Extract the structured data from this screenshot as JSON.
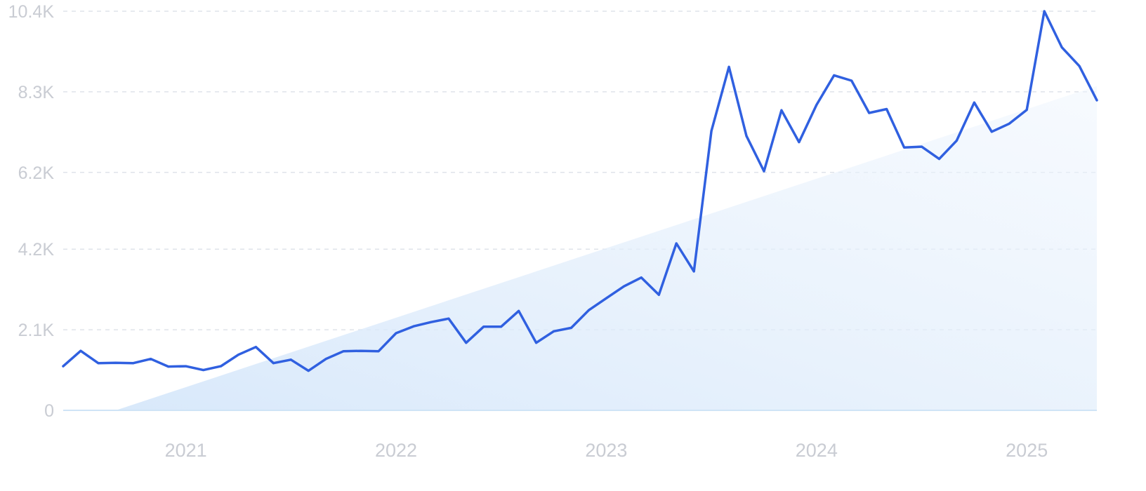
{
  "chart_data": {
    "type": "line",
    "title": "",
    "xlabel": "",
    "ylabel": "",
    "y_ticks": [
      "0",
      "2.1K",
      "4.2K",
      "6.2K",
      "8.3K",
      "10.4K"
    ],
    "y_tick_values": [
      0,
      2100,
      4200,
      6200,
      8300,
      10400
    ],
    "ylim": [
      0,
      10400
    ],
    "x_ticks": [
      "2021",
      "2022",
      "2023",
      "2024",
      "2025"
    ],
    "x_tick_values": [
      "2021-01",
      "2022-01",
      "2023-01",
      "2024-01",
      "2025-01"
    ],
    "xlim": [
      "2020-06",
      "2025-05"
    ],
    "grid": true,
    "legend": false,
    "colors": {
      "line": "#3060e0",
      "trend_area": "#d8e8fa",
      "grid": "#dfe3ea",
      "tick_text": "#c9ccd3"
    },
    "trend": {
      "start": {
        "x": "2020-09",
        "y": 0
      },
      "end": {
        "x": "2025-05",
        "y": 8450
      }
    },
    "series": [
      {
        "x": [
          "2020-06",
          "2020-07",
          "2020-08",
          "2020-09",
          "2020-10",
          "2020-11",
          "2020-12",
          "2021-01",
          "2021-02",
          "2021-03",
          "2021-04",
          "2021-05",
          "2021-06",
          "2021-07",
          "2021-08",
          "2021-09",
          "2021-10",
          "2021-11",
          "2021-12",
          "2022-01",
          "2022-02",
          "2022-03",
          "2022-04",
          "2022-05",
          "2022-06",
          "2022-07",
          "2022-08",
          "2022-09",
          "2022-10",
          "2022-11",
          "2022-12",
          "2023-01",
          "2023-02",
          "2023-03",
          "2023-04",
          "2023-05",
          "2023-06",
          "2023-07",
          "2023-08",
          "2023-09",
          "2023-10",
          "2023-11",
          "2023-12",
          "2024-01",
          "2024-02",
          "2024-03",
          "2024-04",
          "2024-05",
          "2024-06",
          "2024-07",
          "2024-08",
          "2024-09",
          "2024-10",
          "2024-11",
          "2024-12",
          "2025-01",
          "2025-02",
          "2025-03",
          "2025-04",
          "2025-05"
        ],
        "values": [
          1150,
          1550,
          1230,
          1240,
          1230,
          1340,
          1140,
          1150,
          1050,
          1150,
          1450,
          1650,
          1230,
          1320,
          1030,
          1340,
          1540,
          1550,
          1540,
          2010,
          2190,
          2300,
          2390,
          1760,
          2180,
          2180,
          2590,
          1760,
          2060,
          2150,
          2610,
          2920,
          3230,
          3460,
          3010,
          4350,
          3620,
          7280,
          8950,
          7150,
          6230,
          7820,
          6990,
          7960,
          8730,
          8590,
          7750,
          7850,
          6850,
          6870,
          6550,
          7030,
          8020,
          7260,
          7470,
          7830,
          10400,
          9460,
          8970,
          8080
        ]
      }
    ]
  }
}
